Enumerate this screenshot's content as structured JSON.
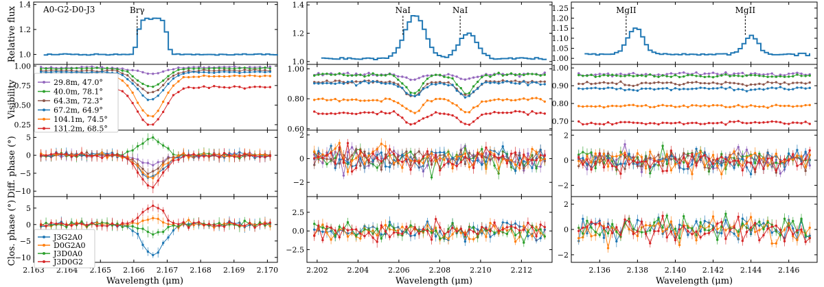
{
  "figure": {
    "target_label": "A0-G2-D0-J3",
    "xlabel": "Wavelength (μm)",
    "row_labels": [
      "Relative flux",
      "Visibility",
      "Diff. phase (°)",
      "Clos. phase (°)"
    ]
  },
  "legends": {
    "baselines": [
      "29.8m, 47.0°",
      "40.0m, 78.1°",
      "64.3m, 72.3°",
      "67.2m, 64.9°",
      "104.1m, 74.5°",
      "131.2m, 68.5°"
    ],
    "baseline_colors": [
      "#9467bd",
      "#2ca02c",
      "#8c564b",
      "#1f77b4",
      "#ff7f0e",
      "#d62728"
    ],
    "triangles": [
      "J3G2A0",
      "D0G2A0",
      "J3D0A0",
      "J3D0G2"
    ],
    "triangle_colors": [
      "#1f77b4",
      "#ff7f0e",
      "#2ca02c",
      "#d62728"
    ]
  },
  "chart_data": [
    {
      "panel": "Br-gamma",
      "type": "line",
      "xlim": [
        2.163,
        2.1703
      ],
      "xticks": [
        "2.163",
        "2.164",
        "2.165",
        "2.166",
        "2.167",
        "2.168",
        "2.169",
        "2.170"
      ],
      "line_wavelengths": [
        {
          "label": "Brγ",
          "x": 2.1661
        }
      ],
      "flux": {
        "ylim": [
          0.92,
          1.42
        ],
        "yticks": [
          "1.0",
          "1.2",
          "1.4"
        ],
        "x": [
          2.1633,
          2.1703
        ],
        "center": 2.1665,
        "width": 0.00042,
        "amp": 0.29,
        "cont": 1.0
      },
      "visibility": {
        "ylim": [
          0.18,
          1.02
        ],
        "yticks": [
          "0.25",
          "0.50",
          "0.75",
          "1.00"
        ],
        "base": [
          0.98,
          0.97,
          0.94,
          0.92,
          0.87,
          0.73
        ],
        "dip": [
          0.08,
          0.24,
          0.29,
          0.35,
          0.52,
          0.49
        ],
        "center": 2.1665,
        "width": 0.0004,
        "n": 46,
        "noise": 0.008
      },
      "diff_phase": {
        "ylim": [
          -11.5,
          7
        ],
        "yticks": [
          "−10",
          "−5",
          "0",
          "5"
        ],
        "n": 46,
        "noise": 0.5,
        "bump": [
          -2.8,
          4.8,
          -5,
          -6.5,
          -6,
          -8.5
        ],
        "center": 2.1665,
        "width": 0.00035
      },
      "closure_phase": {
        "ylim": [
          -11.5,
          8.5
        ],
        "yticks": [
          "−10",
          "−5",
          "0",
          "5"
        ],
        "n": 46,
        "noise": 0.6,
        "bump": [
          -9,
          1.5,
          -2.5,
          5.5
        ],
        "center": 2.1666,
        "width": 0.00033
      }
    },
    {
      "panel": "NaI",
      "type": "line",
      "xlim": [
        2.2015,
        2.2135
      ],
      "xticks": [
        "2.202",
        "2.204",
        "2.206",
        "2.208",
        "2.210",
        "2.212"
      ],
      "line_wavelengths": [
        {
          "label": "NaI",
          "x": 2.2062
        },
        {
          "label": "NaI",
          "x": 2.209
        }
      ],
      "flux": {
        "ylim": [
          0.98,
          1.42
        ],
        "yticks": [
          "1.0",
          "1.2",
          "1.4"
        ],
        "x": [
          2.2022,
          2.2132
        ],
        "lines": [
          {
            "c": 2.2067,
            "w": 0.0005,
            "a": 0.31
          },
          {
            "c": 2.2093,
            "w": 0.00045,
            "a": 0.18
          }
        ],
        "cont": 1.02
      },
      "visibility": {
        "ylim": [
          0.59,
          1.03
        ],
        "yticks": [
          "0.60",
          "0.80",
          "1.00"
        ],
        "base": [
          0.965,
          0.96,
          0.915,
          0.905,
          0.795,
          0.705
        ],
        "dip": [
          0.04,
          0.12,
          0.1,
          0.09,
          0.09,
          0.08
        ],
        "lines": [
          2.2067,
          2.2093
        ],
        "width": 0.0004,
        "n": 56,
        "noise": 0.008
      },
      "diff_phase": {
        "ylim": [
          -3.2,
          2.4
        ],
        "yticks": [
          "−2",
          "0",
          "2"
        ],
        "n": 56,
        "noise": 0.65,
        "bump": [
          0,
          0,
          0,
          0,
          0,
          0
        ],
        "center": 2.207,
        "width": 0.001
      },
      "closure_phase": {
        "ylim": [
          -4.2,
          4.6
        ],
        "yticks": [
          "−2.5",
          "0.0",
          "2.5"
        ],
        "n": 56,
        "noise": 0.8,
        "bump": [
          0,
          0,
          0,
          0
        ],
        "center": 2.207,
        "width": 0.001
      }
    },
    {
      "panel": "MgII",
      "type": "line",
      "xlim": [
        2.1345,
        2.1475
      ],
      "xticks": [
        "2.136",
        "2.138",
        "2.140",
        "2.142",
        "2.144",
        "2.146"
      ],
      "line_wavelengths": [
        {
          "label": "MgII",
          "x": 2.1374
        },
        {
          "label": "MgII",
          "x": 2.1437
        }
      ],
      "flux": {
        "ylim": [
          0.97,
          1.28
        ],
        "yticks": [
          "1.00",
          "1.05",
          "1.10",
          "1.15",
          "1.20",
          "1.25"
        ],
        "x": [
          2.1352,
          2.1471
        ],
        "lines": [
          {
            "c": 2.1378,
            "w": 0.00042,
            "a": 0.13
          },
          {
            "c": 2.1439,
            "w": 0.00038,
            "a": 0.09
          }
        ],
        "cont": 1.02
      },
      "visibility": {
        "ylim": [
          0.65,
          1.02
        ],
        "yticks": [
          "0.70",
          "0.80",
          "0.90",
          "1.00"
        ],
        "base": [
          0.965,
          0.955,
          0.915,
          0.885,
          0.785,
          0.69
        ],
        "dip": [
          0,
          0,
          0.01,
          0.01,
          0,
          0
        ],
        "lines": [
          2.1378,
          2.1439
        ],
        "width": 0.0004,
        "n": 56,
        "noise": 0.006
      },
      "diff_phase": {
        "ylim": [
          -2.9,
          2.4
        ],
        "yticks": [
          "−2",
          "0",
          "2"
        ],
        "n": 56,
        "noise": 0.6,
        "bump": [
          0,
          0,
          0,
          0,
          0,
          0
        ],
        "center": 2.14,
        "width": 0.001
      },
      "closure_phase": {
        "ylim": [
          -2.6,
          2.6
        ],
        "yticks": [
          "−2",
          "0",
          "2"
        ],
        "n": 56,
        "noise": 0.75,
        "bump": [
          0,
          0,
          0,
          0
        ],
        "center": 2.14,
        "width": 0.001
      }
    }
  ]
}
